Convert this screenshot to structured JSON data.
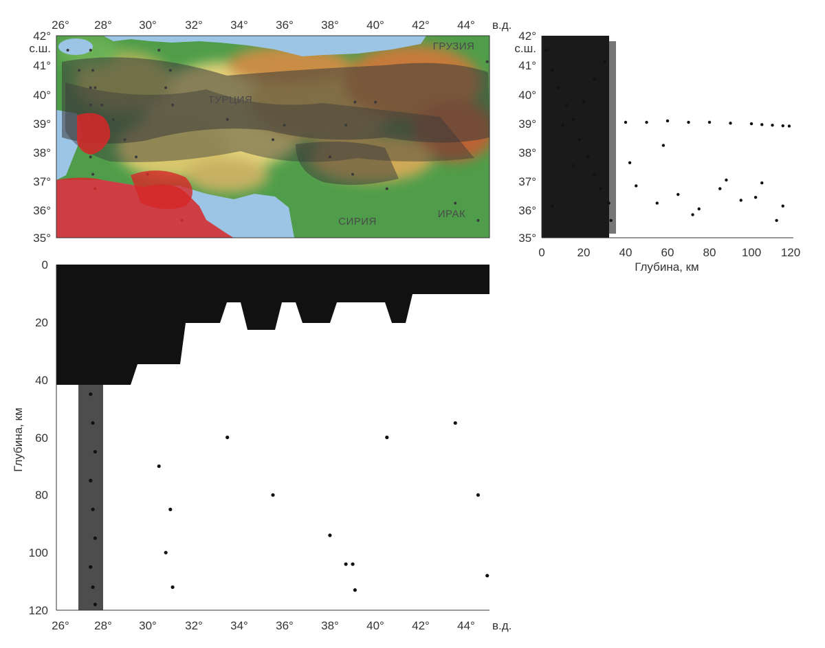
{
  "map": {
    "lon_ticks": [
      "26°",
      "28°",
      "30°",
      "32°",
      "34°",
      "36°",
      "38°",
      "40°",
      "42°",
      "44°"
    ],
    "lat_ticks": [
      "42°",
      "41°",
      "40°",
      "39°",
      "38°",
      "37°",
      "36°",
      "35°"
    ],
    "lon_unit": "в.д.",
    "lat_unit": "с.ш.",
    "countries": [
      "ТУРЦИЯ",
      "ГРУЗИЯ",
      "СИРИЯ",
      "ИРАК"
    ],
    "colors": {
      "sea": "#9cc4e4",
      "lowland": "#4f9d4a",
      "upland": "#d7c56a",
      "mountain": "#b7562e",
      "events": "#3a3a3a",
      "events_highlight": "#d62828"
    }
  },
  "depth_lat": {
    "ticks_x": [
      "0",
      "20",
      "40",
      "60",
      "80",
      "100",
      "120"
    ],
    "ticks_y": [
      "42°",
      "41°",
      "40°",
      "39°",
      "38°",
      "37°",
      "36°",
      "35°"
    ],
    "lat_unit": "с.ш.",
    "xlabel": "Глубина, км"
  },
  "depth_lon": {
    "ticks_x": [
      "26°",
      "28°",
      "30°",
      "32°",
      "34°",
      "36°",
      "38°",
      "40°",
      "42°",
      "44°"
    ],
    "ticks_y": [
      "0",
      "20",
      "40",
      "60",
      "80",
      "100",
      "120"
    ],
    "lon_unit": "в.д.",
    "ylabel": "Глубина, км"
  },
  "chart_data": [
    {
      "type": "scatter",
      "title": "",
      "xlabel": "Глубина, км",
      "ylabel": "",
      "xlim": [
        0,
        120
      ],
      "ylim": [
        35,
        42
      ],
      "grid": false,
      "series": [
        {
          "x": [
            2,
            5,
            8,
            12,
            15,
            18,
            22,
            25,
            28,
            32,
            33,
            10,
            20,
            30,
            5,
            15,
            25
          ],
          "y": [
            41.5,
            40.8,
            40.2,
            39.6,
            39.1,
            38.4,
            37.8,
            37.2,
            36.7,
            36.2,
            35.6,
            38.9,
            39.7,
            41.1,
            36.1,
            37.5,
            40.5
          ]
        },
        {
          "x": [
            40,
            50,
            60,
            70,
            80,
            90,
            100,
            105,
            110,
            115,
            118
          ],
          "y": [
            39.0,
            39.0,
            39.05,
            39.0,
            39.0,
            38.97,
            38.95,
            38.92,
            38.9,
            38.88,
            38.87
          ]
        },
        {
          "x": [
            45,
            55,
            65,
            75,
            85,
            95,
            105,
            115,
            42,
            58,
            72,
            88,
            102,
            112
          ],
          "y": [
            36.8,
            36.2,
            36.5,
            36.0,
            36.7,
            36.3,
            36.9,
            36.1,
            37.6,
            38.2,
            35.8,
            37.0,
            36.4,
            35.6
          ]
        }
      ]
    },
    {
      "type": "scatter",
      "title": "",
      "xlabel": "",
      "ylabel": "Глубина, км",
      "xlim": [
        26,
        45
      ],
      "ylim": [
        120,
        0
      ],
      "grid": false,
      "series": [
        {
          "x": [
            26.5,
            27.0,
            27.5,
            28.0,
            28.5,
            29.0,
            29.5,
            30.0,
            30.5,
            31.0,
            31.5,
            36.0,
            40.0
          ],
          "y": [
            10,
            15,
            20,
            25,
            30,
            8,
            12,
            18,
            22,
            26,
            14,
            10,
            10
          ]
        },
        {
          "x": [
            27.5,
            27.6,
            27.7,
            27.5,
            27.6,
            27.7,
            27.5,
            27.6,
            27.7
          ],
          "y": [
            45,
            55,
            65,
            75,
            85,
            95,
            105,
            112,
            118
          ]
        },
        {
          "x": [
            30.5,
            31.0,
            30.8,
            31.1,
            33.5,
            35.5,
            38.0,
            39.0,
            40.5,
            43.5,
            44.5,
            38.7,
            39.1,
            44.9
          ],
          "y": [
            70,
            85,
            100,
            112,
            60,
            80,
            94,
            104,
            60,
            55,
            80,
            104,
            113,
            108
          ]
        }
      ]
    }
  ]
}
